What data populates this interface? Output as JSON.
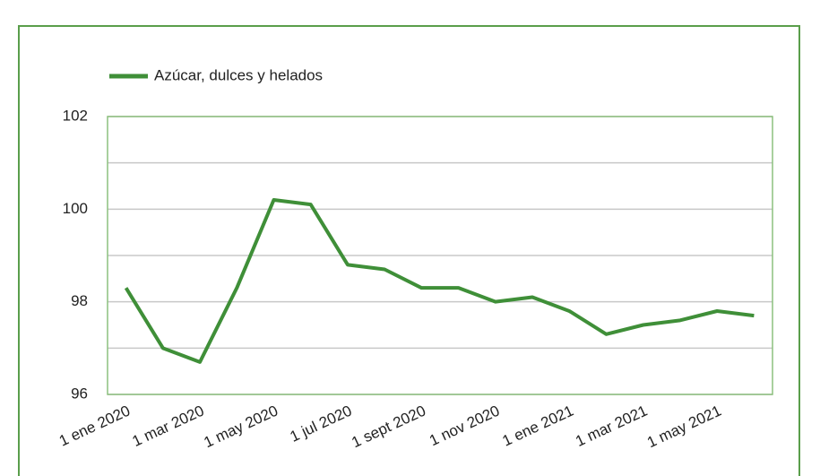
{
  "chart_data": {
    "type": "line",
    "categories": [
      "1 ene 2020",
      null,
      "1 mar 2020",
      null,
      "1 may 2020",
      null,
      "1 jul 2020",
      null,
      "1 sept 2020",
      null,
      "1 nov 2020",
      null,
      "1 ene 2021",
      null,
      "1 mar 2021",
      null,
      "1 may 2021",
      null
    ],
    "series": [
      {
        "name": "Azúcar, dulces y helados",
        "color": "#3f8f38",
        "values": [
          98.3,
          97.0,
          96.7,
          98.3,
          100.2,
          100.1,
          98.8,
          98.7,
          98.3,
          98.3,
          98.0,
          98.1,
          97.8,
          97.3,
          97.5,
          97.6,
          97.8,
          97.7
        ]
      }
    ],
    "ylim": [
      96,
      102
    ],
    "yticks": [
      96,
      98,
      100,
      102
    ],
    "minor_yticks": [
      97,
      99,
      101
    ],
    "grid": true,
    "legend": "top"
  }
}
